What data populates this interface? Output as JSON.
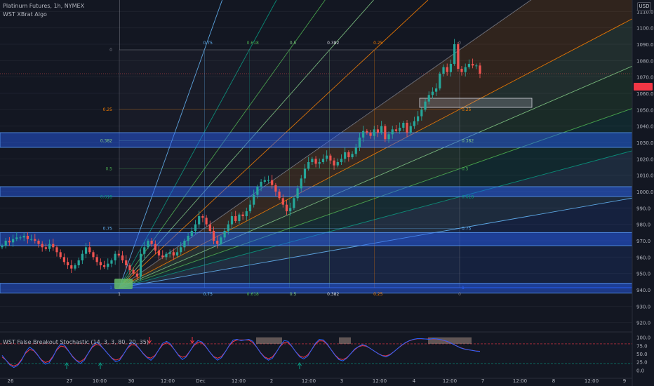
{
  "header": {
    "symbol_line": "Platinum Futures, 1h, NYMEX",
    "indicator_line": "WST XBrat Algo",
    "currency": "USD",
    "last_price_label": ""
  },
  "oscillator": {
    "title": "WST False Breakout Stochastic (14, 3, 3, 80, 20, 35)"
  },
  "fib_fan": {
    "ratio_labels": [
      "0.75",
      "0.618",
      "0.5",
      "0.382",
      "0.25",
      "0"
    ],
    "left_labels": [
      "0",
      "0.25",
      "0.382",
      "0.5",
      "0.618",
      "0.75",
      "1"
    ],
    "right_labels": [
      "0.25",
      "0.382",
      "0.5",
      "0.618",
      "0.75",
      "1"
    ],
    "bottom_labels": [
      "1",
      "0.75",
      "0.618",
      "0.5",
      "0.382",
      "0.25",
      "0"
    ]
  },
  "chart_data": {
    "type": "candlestick",
    "title": "Platinum Futures, 1h, NYMEX",
    "price_axis": {
      "ticks": [
        1110.0,
        1100.0,
        1090.0,
        1080.0,
        1070.0,
        1060.0,
        1050.0,
        1040.0,
        1030.0,
        1020.0,
        1010.0,
        1000.0,
        990.0,
        980.0,
        970.0,
        960.0,
        950.0,
        940.0,
        930.0,
        920.0
      ],
      "ylim": [
        916,
        1117
      ]
    },
    "time_axis": {
      "ticks": [
        "26",
        "27",
        "10:00",
        "30",
        "12:00",
        "Dec",
        "12:00",
        "2",
        "12:00",
        "3",
        "12:00",
        "4",
        "12:00",
        "7",
        "12:00",
        "8",
        "12:00",
        "9"
      ]
    },
    "candles_close": [
      967,
      970,
      969,
      971,
      972,
      972,
      973,
      971,
      971,
      970,
      968,
      966,
      965,
      968,
      966,
      963,
      960,
      957,
      955,
      953,
      955,
      958,
      962,
      966,
      963,
      960,
      957,
      955,
      954,
      956,
      958,
      962,
      961,
      958,
      955,
      952,
      950,
      948,
      962,
      966,
      970,
      968,
      964,
      961,
      960,
      962,
      963,
      961,
      963,
      966,
      970,
      973,
      976,
      980,
      985,
      984,
      980,
      976,
      970,
      968,
      972,
      976,
      980,
      985,
      982,
      986,
      985,
      988,
      992,
      998,
      1003,
      1006,
      1007,
      1007,
      1004,
      1000,
      996,
      992,
      988,
      990,
      996,
      1002,
      1008,
      1014,
      1018,
      1020,
      1017,
      1018,
      1020,
      1022,
      1019,
      1016,
      1018,
      1020,
      1024,
      1021,
      1023,
      1027,
      1033,
      1037,
      1036,
      1034,
      1038,
      1036,
      1040,
      1032,
      1035,
      1038,
      1037,
      1039,
      1042,
      1036,
      1040,
      1043,
      1046,
      1050,
      1055,
      1059,
      1061,
      1063,
      1072,
      1076,
      1073,
      1078,
      1090,
      1075,
      1073,
      1076,
      1078,
      1077,
      1077,
      1072
    ],
    "zones": [
      {
        "from": 1027,
        "to": 1036
      },
      {
        "from": 997,
        "to": 1003
      },
      {
        "from": 967,
        "to": 975
      },
      {
        "from": 938,
        "to": 944
      }
    ],
    "oscillator_levels": [
      100.0,
      75.0,
      50.0,
      25.0,
      0.0
    ],
    "oscillator_ylim": [
      -8,
      110
    ],
    "oscillator_thresholds": {
      "upper": 80,
      "lower": 20
    },
    "oscillator_values": [
      45,
      30,
      15,
      8,
      14,
      30,
      55,
      70,
      62,
      48,
      30,
      18,
      22,
      40,
      65,
      80,
      75,
      58,
      40,
      28,
      20,
      30,
      52,
      72,
      85,
      78,
      64,
      50,
      36,
      25,
      30,
      48,
      68,
      84,
      80,
      66,
      50,
      38,
      30,
      42,
      62,
      82,
      88,
      80,
      62,
      45,
      32,
      40,
      58,
      78,
      90,
      86,
      72,
      55,
      40,
      30,
      38,
      56,
      76,
      92,
      94,
      90,
      92,
      94,
      88,
      70,
      52,
      38,
      30,
      36,
      54,
      74,
      90,
      88,
      72,
      55,
      40,
      34,
      42,
      62,
      82,
      94,
      92,
      80,
      62,
      45,
      32,
      28,
      36,
      50,
      64,
      72,
      78,
      74,
      66,
      58,
      50,
      44,
      40,
      46,
      56,
      66,
      76,
      84,
      90,
      94,
      96,
      96,
      95,
      94,
      96,
      95,
      93,
      90,
      86,
      80,
      74,
      68,
      64,
      62,
      60,
      58,
      57
    ],
    "colors": {
      "up": "#26a69a",
      "down": "#ef5350",
      "zone": "#2962ff",
      "stoch_k": "#2962ff",
      "stoch_d": "#f23645",
      "background": "#131722"
    }
  }
}
